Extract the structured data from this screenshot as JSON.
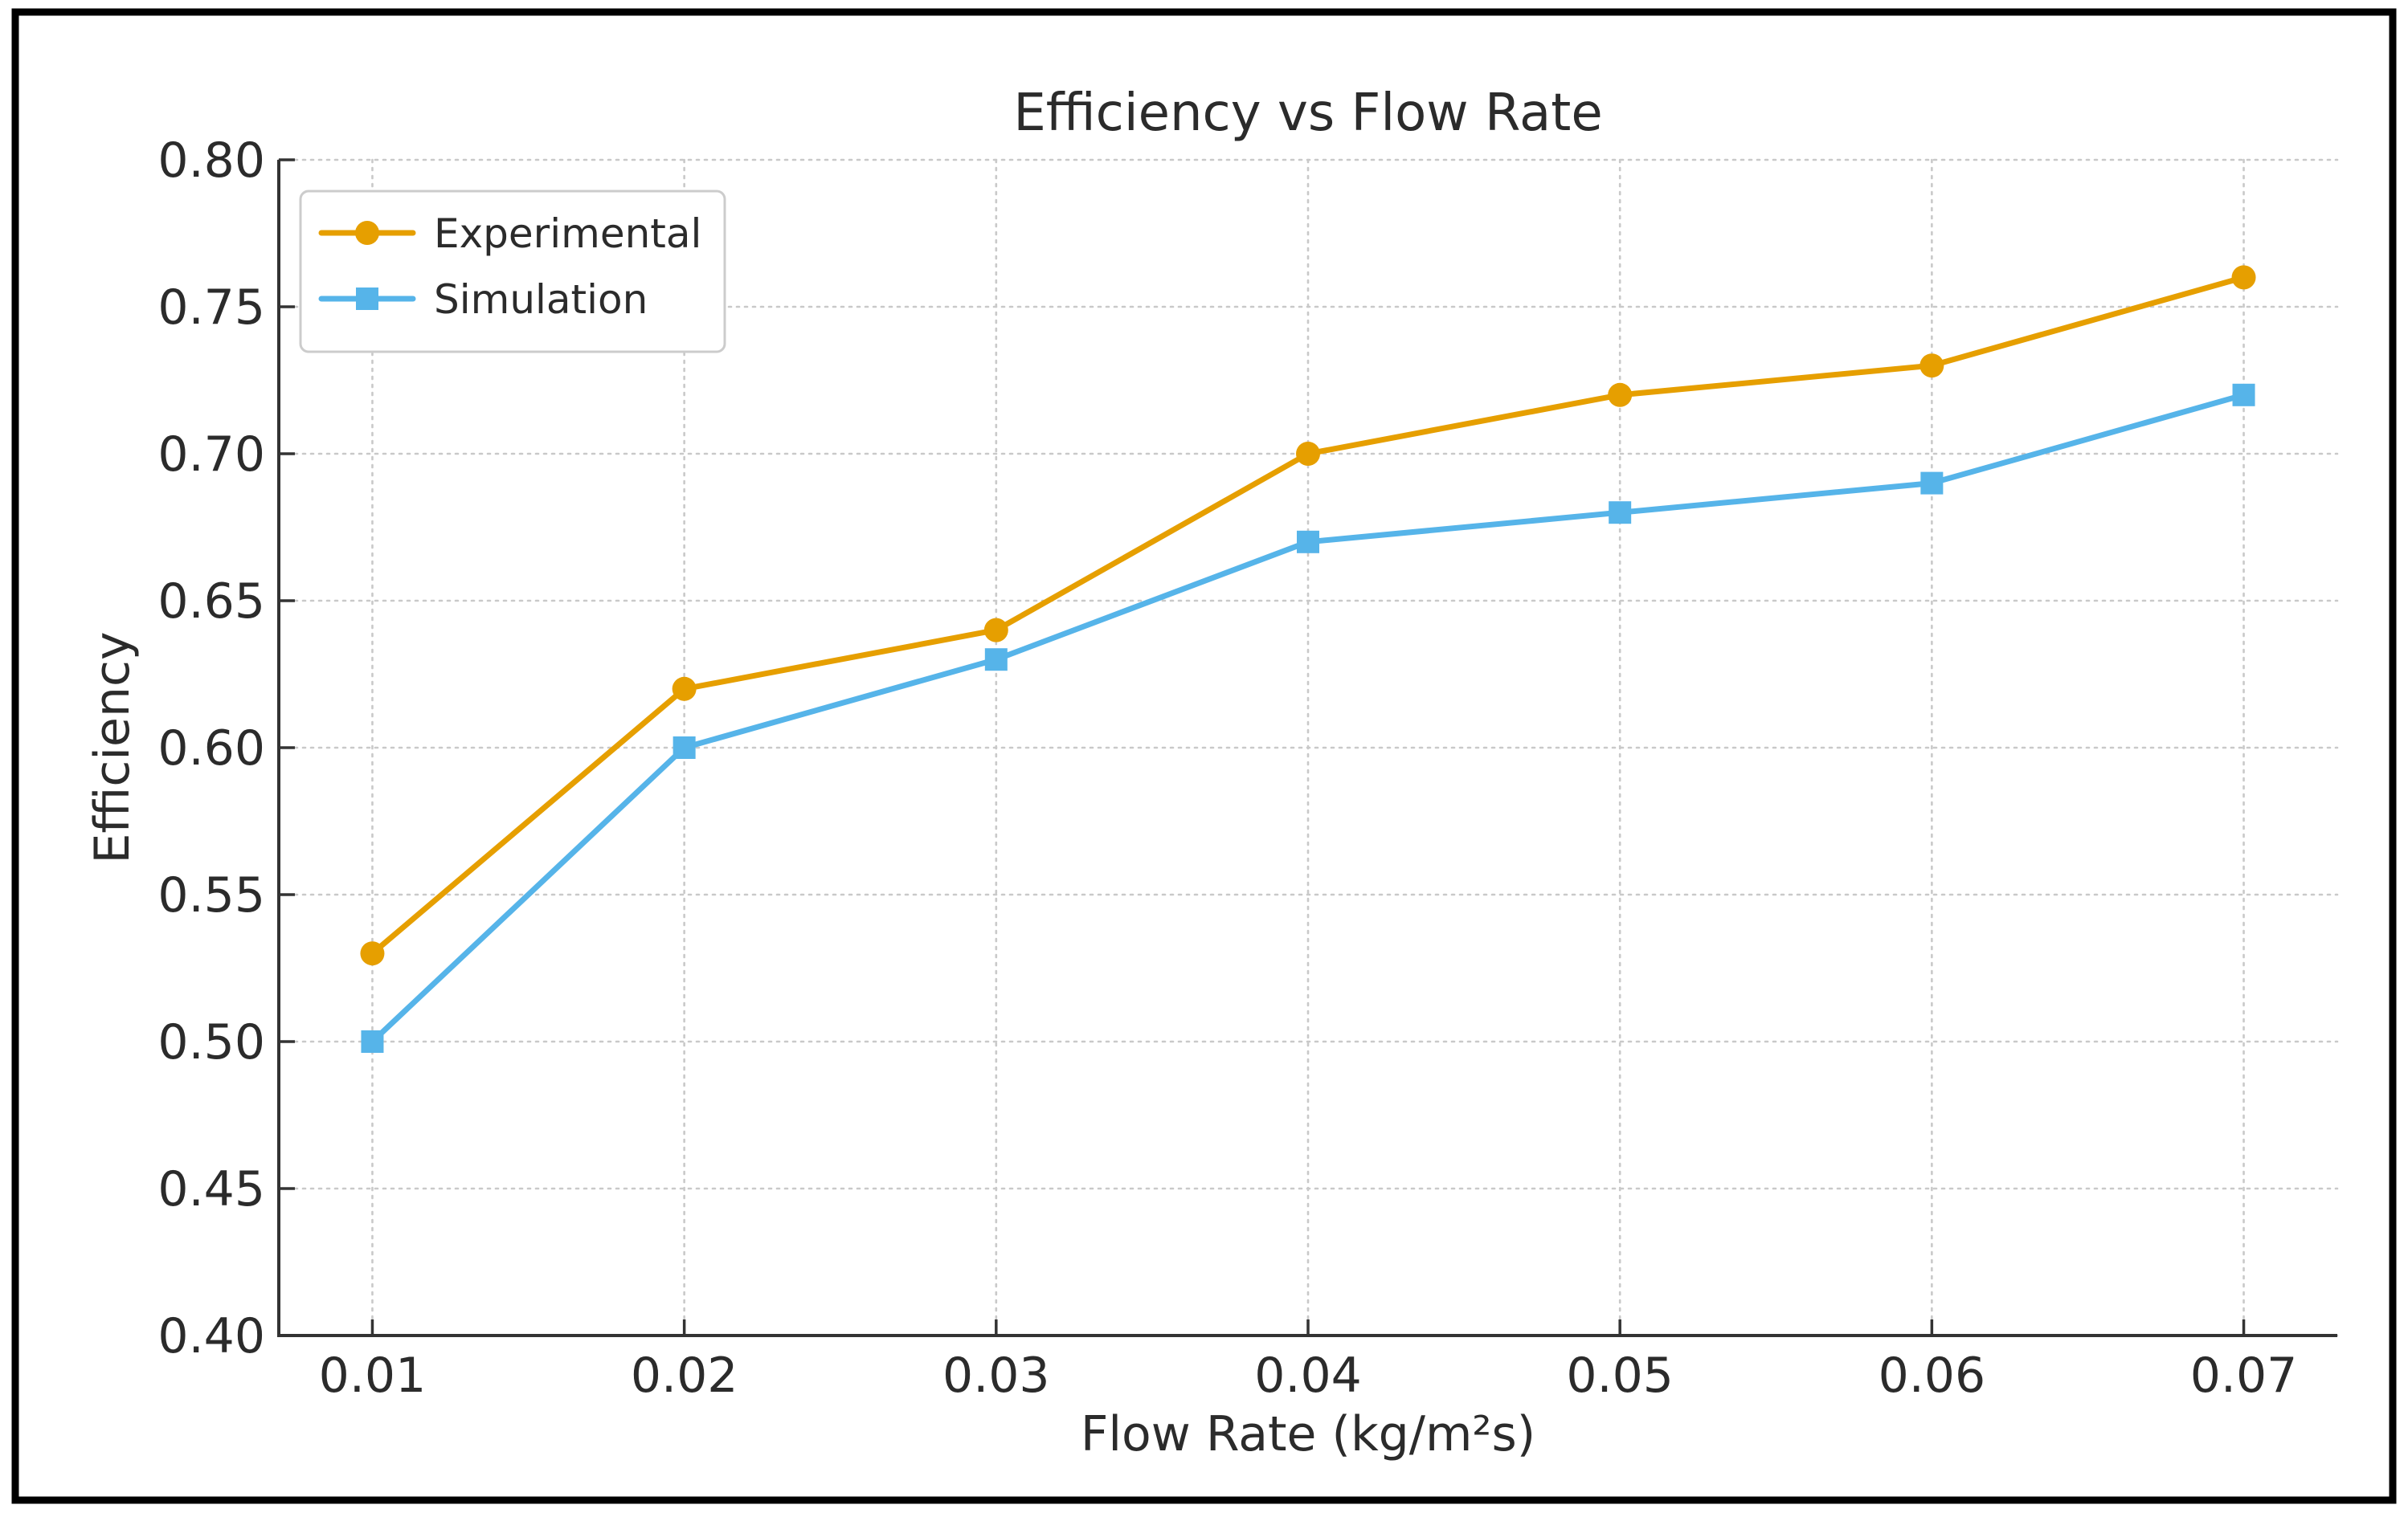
{
  "chart_data": {
    "type": "line",
    "title": "Efficiency vs Flow Rate",
    "xlabel": "Flow Rate (kg/m²s)",
    "ylabel": "Efficiency",
    "x": [
      0.01,
      0.02,
      0.03,
      0.04,
      0.05,
      0.06,
      0.07
    ],
    "series": [
      {
        "name": "Experimental",
        "color": "#E69F00",
        "marker": "circle",
        "values": [
          0.53,
          0.62,
          0.64,
          0.7,
          0.72,
          0.73,
          0.76
        ]
      },
      {
        "name": "Simulation",
        "color": "#56B4E9",
        "marker": "square",
        "values": [
          0.5,
          0.6,
          0.63,
          0.67,
          0.68,
          0.69,
          0.72
        ]
      }
    ],
    "xlim": [
      0.007,
      0.073
    ],
    "ylim": [
      0.4,
      0.8
    ],
    "xticks": [
      "0.01",
      "0.02",
      "0.03",
      "0.04",
      "0.05",
      "0.06",
      "0.07"
    ],
    "yticks": [
      "0.40",
      "0.45",
      "0.50",
      "0.55",
      "0.60",
      "0.65",
      "0.70",
      "0.75",
      "0.80"
    ],
    "grid": "dotted",
    "legend_position": "upper-left",
    "style": {
      "text_color": "#2b2b2b",
      "grid_color": "#c9c9c9",
      "spine_color": "#333333",
      "legend_border": "#cccccc",
      "frame_color": "#000000",
      "background": "#ffffff"
    }
  }
}
